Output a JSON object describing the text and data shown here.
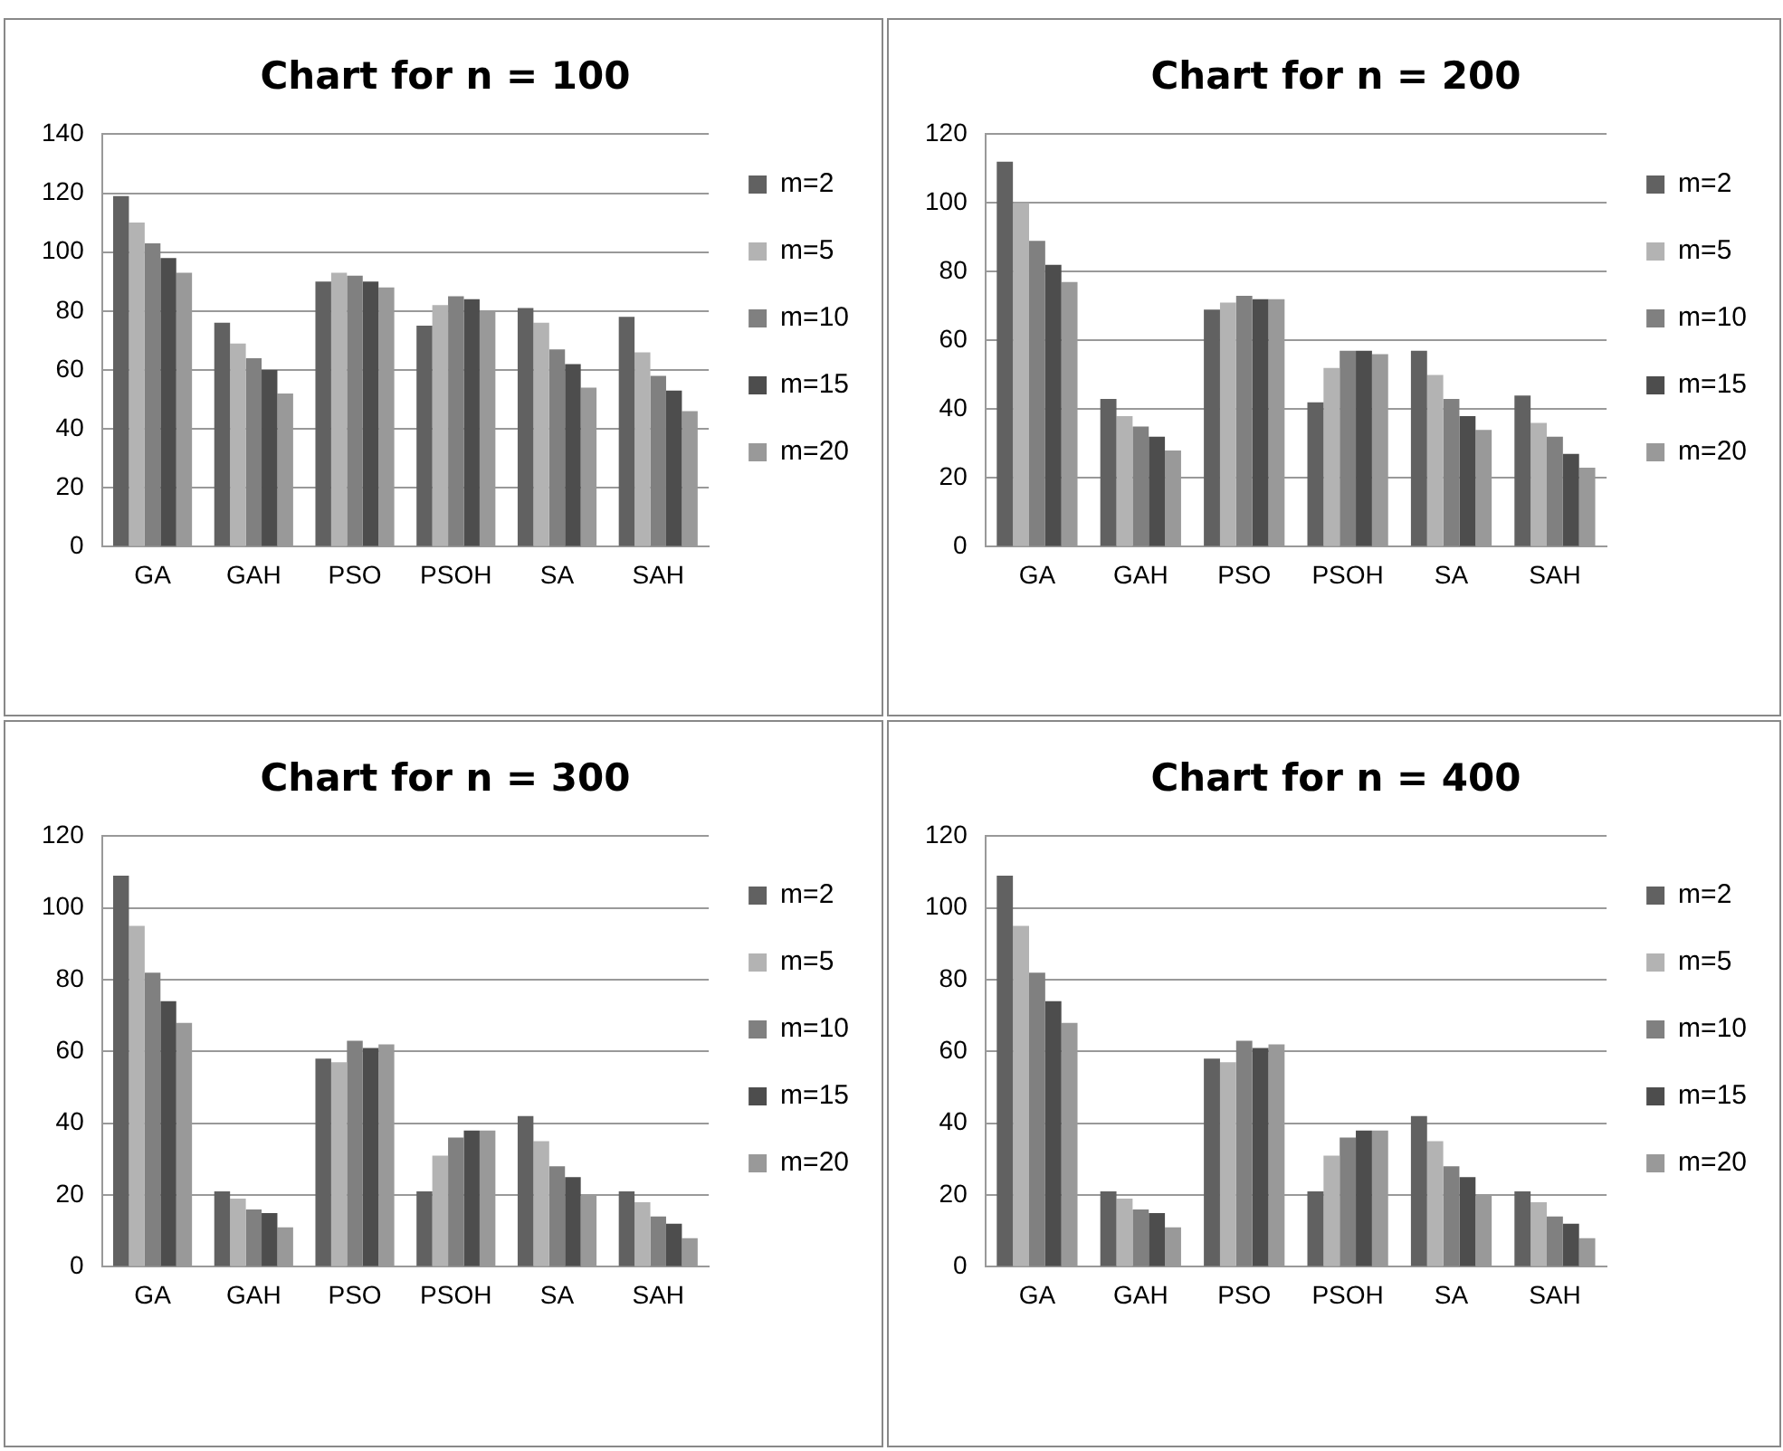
{
  "chart_data": [
    {
      "type": "bar",
      "title": "Chart for n = 100",
      "categories": [
        "GA",
        "GAH",
        "PSO",
        "PSOH",
        "SA",
        "SAH"
      ],
      "ylim": [
        0,
        140
      ],
      "yticks": [
        0,
        20,
        40,
        60,
        80,
        100,
        120,
        140
      ],
      "grid": "y",
      "legend": "right",
      "series": [
        {
          "name": "m=2",
          "color": "#616161",
          "values": [
            119,
            76,
            90,
            75,
            81,
            78
          ]
        },
        {
          "name": "m=5",
          "color": "#b3b3b3",
          "values": [
            110,
            69,
            93,
            82,
            76,
            66
          ]
        },
        {
          "name": "m=10",
          "color": "#808080",
          "values": [
            103,
            64,
            92,
            85,
            67,
            58
          ]
        },
        {
          "name": "m=15",
          "color": "#4d4d4d",
          "values": [
            98,
            60,
            90,
            84,
            62,
            53
          ]
        },
        {
          "name": "m=20",
          "color": "#999999",
          "values": [
            93,
            52,
            88,
            80,
            54,
            46
          ]
        }
      ]
    },
    {
      "type": "bar",
      "title": "Chart for n = 200",
      "categories": [
        "GA",
        "GAH",
        "PSO",
        "PSOH",
        "SA",
        "SAH"
      ],
      "ylim": [
        0,
        120
      ],
      "yticks": [
        0,
        20,
        40,
        60,
        80,
        100,
        120
      ],
      "grid": "y",
      "legend": "right",
      "series": [
        {
          "name": "m=2",
          "color": "#616161",
          "values": [
            112,
            43,
            69,
            42,
            57,
            44
          ]
        },
        {
          "name": "m=5",
          "color": "#b3b3b3",
          "values": [
            100,
            38,
            71,
            52,
            50,
            36
          ]
        },
        {
          "name": "m=10",
          "color": "#808080",
          "values": [
            89,
            35,
            73,
            57,
            43,
            32
          ]
        },
        {
          "name": "m=15",
          "color": "#4d4d4d",
          "values": [
            82,
            32,
            72,
            57,
            38,
            27
          ]
        },
        {
          "name": "m=20",
          "color": "#999999",
          "values": [
            77,
            28,
            72,
            56,
            34,
            23
          ]
        }
      ]
    },
    {
      "type": "bar",
      "title": "Chart for n = 300",
      "categories": [
        "GA",
        "GAH",
        "PSO",
        "PSOH",
        "SA",
        "SAH"
      ],
      "ylim": [
        0,
        120
      ],
      "yticks": [
        0,
        20,
        40,
        60,
        80,
        100,
        120
      ],
      "grid": "y",
      "legend": "right",
      "series": [
        {
          "name": "m=2",
          "color": "#616161",
          "values": [
            109,
            21,
            58,
            21,
            42,
            21
          ]
        },
        {
          "name": "m=5",
          "color": "#b3b3b3",
          "values": [
            95,
            19,
            57,
            31,
            35,
            18
          ]
        },
        {
          "name": "m=10",
          "color": "#808080",
          "values": [
            82,
            16,
            63,
            36,
            28,
            14
          ]
        },
        {
          "name": "m=15",
          "color": "#4d4d4d",
          "values": [
            74,
            15,
            61,
            38,
            25,
            12
          ]
        },
        {
          "name": "m=20",
          "color": "#999999",
          "values": [
            68,
            11,
            62,
            38,
            20,
            8
          ]
        }
      ]
    },
    {
      "type": "bar",
      "title": "Chart for n = 400",
      "categories": [
        "GA",
        "GAH",
        "PSO",
        "PSOH",
        "SA",
        "SAH"
      ],
      "ylim": [
        0,
        120
      ],
      "yticks": [
        0,
        20,
        40,
        60,
        80,
        100,
        120
      ],
      "grid": "y",
      "legend": "right",
      "series": [
        {
          "name": "m=2",
          "color": "#616161",
          "values": [
            109,
            21,
            58,
            21,
            42,
            21
          ]
        },
        {
          "name": "m=5",
          "color": "#b3b3b3",
          "values": [
            95,
            19,
            57,
            31,
            35,
            18
          ]
        },
        {
          "name": "m=10",
          "color": "#808080",
          "values": [
            82,
            16,
            63,
            36,
            28,
            14
          ]
        },
        {
          "name": "m=15",
          "color": "#4d4d4d",
          "values": [
            74,
            15,
            61,
            38,
            25,
            12
          ]
        },
        {
          "name": "m=20",
          "color": "#999999",
          "values": [
            68,
            11,
            62,
            38,
            20,
            8
          ]
        }
      ]
    }
  ]
}
